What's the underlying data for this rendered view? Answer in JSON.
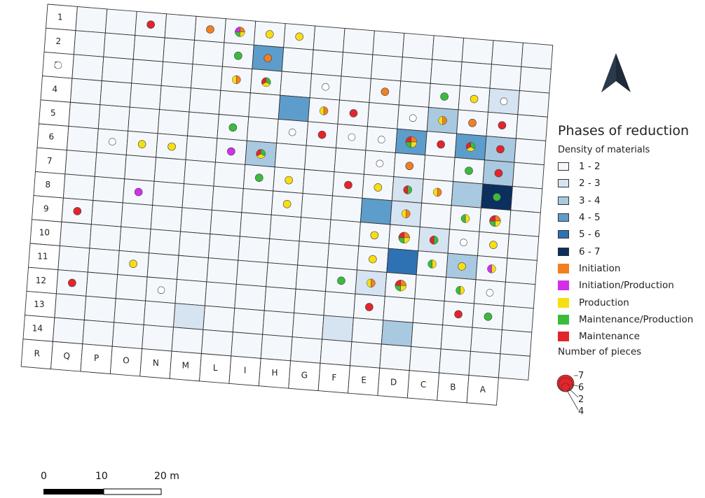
{
  "legend": {
    "title": "Phases of reduction",
    "density_title": "Density of materials",
    "density": [
      {
        "label": "1 - 2",
        "color": "#f4f8fc"
      },
      {
        "label": "2 - 3",
        "color": "#d6e3f1"
      },
      {
        "label": "3 - 4",
        "color": "#a9c9e0"
      },
      {
        "label": "4 - 5",
        "color": "#5d9dcb"
      },
      {
        "label": "5 - 6",
        "color": "#2f72b4"
      },
      {
        "label": "6 - 7",
        "color": "#0b2f5e"
      }
    ],
    "phases": [
      {
        "label": "Initiation",
        "color": "#f28020"
      },
      {
        "label": "Initiation/Production",
        "color": "#d42fe8"
      },
      {
        "label": "Production",
        "color": "#f7de13"
      },
      {
        "label": "Maintenance/Production",
        "color": "#3bbb3b"
      },
      {
        "label": "Maintenance",
        "color": "#e3242b"
      }
    ],
    "pieces_title": "Number of pieces",
    "pieces_labels": [
      "7",
      "6",
      "2",
      "4"
    ]
  },
  "grid": {
    "rows": [
      "1",
      "2",
      "3",
      "4",
      "5",
      "6",
      "7",
      "8",
      "9",
      "10",
      "11",
      "12",
      "13",
      "14"
    ],
    "cols": [
      "R",
      "Q",
      "P",
      "O",
      "N",
      "M",
      "L",
      "I",
      "H",
      "G",
      "F",
      "E",
      "D",
      "C",
      "B",
      "A"
    ],
    "shading": {
      "1,7": 3,
      "2,15": 1,
      "3,8": 3,
      "3,13": 2,
      "4,12": 3,
      "4,14": 3,
      "4,15": 2,
      "5,7": 2,
      "5,15": 2,
      "6,14": 2,
      "6,15": 5,
      "6,12": 1,
      "7,11": 3,
      "7,12": 1,
      "8,13": 1,
      "9,12": 4,
      "9,14": 2,
      "10,11": 1,
      "12,5": 1,
      "12,10": 1,
      "12,12": 2
    },
    "symbols": [
      {
        "r": 0,
        "c": 4,
        "p": "M"
      },
      {
        "r": 0,
        "c": 6,
        "p": "I"
      },
      {
        "r": 0,
        "c": 7,
        "p": "pie4"
      },
      {
        "r": 0,
        "c": 8,
        "p": "P"
      },
      {
        "r": 0,
        "c": 9,
        "p": "P"
      },
      {
        "r": 1,
        "c": 7,
        "p": "MP"
      },
      {
        "r": 1,
        "c": 8,
        "p": "I"
      },
      {
        "r": 2,
        "c": 1,
        "p": "E"
      },
      {
        "r": 2,
        "c": 7,
        "p": "IP2"
      },
      {
        "r": 2,
        "c": 8,
        "p": "pieG"
      },
      {
        "r": 2,
        "c": 10,
        "p": "E"
      },
      {
        "r": 2,
        "c": 12,
        "p": "I"
      },
      {
        "r": 2,
        "c": 14,
        "p": "MP"
      },
      {
        "r": 2,
        "c": 15,
        "p": "P"
      },
      {
        "r": 2,
        "c": 16,
        "p": "E"
      },
      {
        "r": 3,
        "c": 10,
        "p": "IP2"
      },
      {
        "r": 3,
        "c": 11,
        "p": "M"
      },
      {
        "r": 3,
        "c": 13,
        "p": "E"
      },
      {
        "r": 3,
        "c": 14,
        "p": "IP2"
      },
      {
        "r": 3,
        "c": 15,
        "p": "I"
      },
      {
        "r": 3,
        "c": 16,
        "p": "M"
      },
      {
        "r": 4,
        "c": 7,
        "p": "MP"
      },
      {
        "r": 4,
        "c": 9,
        "p": "E"
      },
      {
        "r": 4,
        "c": 10,
        "p": "M"
      },
      {
        "r": 4,
        "c": 11,
        "p": "E"
      },
      {
        "r": 4,
        "c": 12,
        "p": "E"
      },
      {
        "r": 4,
        "c": 13,
        "p": "pieBig"
      },
      {
        "r": 4,
        "c": 14,
        "p": "M"
      },
      {
        "r": 4,
        "c": 15,
        "p": "pieG"
      },
      {
        "r": 4,
        "c": 16,
        "p": "M"
      },
      {
        "r": 5,
        "c": 3,
        "p": "E"
      },
      {
        "r": 5,
        "c": 4,
        "p": "P"
      },
      {
        "r": 5,
        "c": 5,
        "p": "P"
      },
      {
        "r": 5,
        "c": 7,
        "p": "IP"
      },
      {
        "r": 5,
        "c": 8,
        "p": "pieG"
      },
      {
        "r": 5,
        "c": 12,
        "p": "E"
      },
      {
        "r": 5,
        "c": 13,
        "p": "I"
      },
      {
        "r": 5,
        "c": 15,
        "p": "MP"
      },
      {
        "r": 5,
        "c": 16,
        "p": "M"
      },
      {
        "r": 6,
        "c": 8,
        "p": "MP"
      },
      {
        "r": 6,
        "c": 9,
        "p": "P"
      },
      {
        "r": 6,
        "c": 11,
        "p": "M"
      },
      {
        "r": 6,
        "c": 12,
        "p": "P"
      },
      {
        "r": 6,
        "c": 13,
        "p": "GR"
      },
      {
        "r": 6,
        "c": 14,
        "p": "IP2"
      },
      {
        "r": 6,
        "c": 16,
        "p": "MP"
      },
      {
        "r": 7,
        "c": 4,
        "p": "IP"
      },
      {
        "r": 7,
        "c": 9,
        "p": "P"
      },
      {
        "r": 7,
        "c": 13,
        "p": "IP2"
      },
      {
        "r": 7,
        "c": 15,
        "p": "PG"
      },
      {
        "r": 7,
        "c": 16,
        "p": "pieBig"
      },
      {
        "r": 8,
        "c": 2,
        "p": "M"
      },
      {
        "r": 8,
        "c": 12,
        "p": "P"
      },
      {
        "r": 8,
        "c": 13,
        "p": "pieBig"
      },
      {
        "r": 8,
        "c": 14,
        "p": "GR"
      },
      {
        "r": 8,
        "c": 15,
        "p": "E"
      },
      {
        "r": 8,
        "c": 16,
        "p": "P"
      },
      {
        "r": 9,
        "c": 12,
        "p": "P"
      },
      {
        "r": 9,
        "c": 14,
        "p": "PG"
      },
      {
        "r": 9,
        "c": 15,
        "p": "P"
      },
      {
        "r": 9,
        "c": 16,
        "p": "IPm"
      },
      {
        "r": 10,
        "c": 4,
        "p": "P"
      },
      {
        "r": 10,
        "c": 11,
        "p": "MP"
      },
      {
        "r": 10,
        "c": 12,
        "p": "IP2"
      },
      {
        "r": 10,
        "c": 13,
        "p": "pieBig"
      },
      {
        "r": 10,
        "c": 15,
        "p": "PG"
      },
      {
        "r": 10,
        "c": 16,
        "p": "E"
      },
      {
        "r": 11,
        "c": 2,
        "p": "M"
      },
      {
        "r": 11,
        "c": 5,
        "p": "E"
      },
      {
        "r": 11,
        "c": 12,
        "p": "M"
      },
      {
        "r": 11,
        "c": 15,
        "p": "M"
      },
      {
        "r": 11,
        "c": 16,
        "p": "MP"
      }
    ]
  },
  "scale": {
    "labels": [
      "0",
      "10",
      "20 m"
    ]
  }
}
